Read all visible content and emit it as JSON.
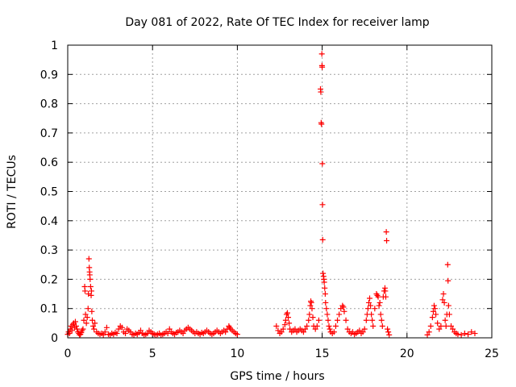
{
  "chart_data": {
    "type": "scatter",
    "title": "Day 081 of 2022, Rate Of TEC Index for receiver lamp",
    "xlabel": "GPS time / hours",
    "ylabel": "ROTI / TECUs",
    "xlim": [
      0,
      25
    ],
    "ylim": [
      0,
      1
    ],
    "grid": true,
    "x_ticks": [
      "0",
      "5",
      "10",
      "15",
      "20",
      "25"
    ],
    "y_ticks": [
      "0",
      "0.1",
      "0.2",
      "0.3",
      "0.4",
      "0.5",
      "0.6",
      "0.7",
      "0.8",
      "0.9",
      "1"
    ],
    "marker": "plus",
    "color": "#ff0000",
    "series": [
      {
        "points": [
          [
            0.0,
            0.012
          ],
          [
            0.05,
            0.02
          ],
          [
            0.1,
            0.015
          ],
          [
            0.15,
            0.03
          ],
          [
            0.2,
            0.04
          ],
          [
            0.25,
            0.025
          ],
          [
            0.3,
            0.045
          ],
          [
            0.35,
            0.05
          ],
          [
            0.4,
            0.035
          ],
          [
            0.45,
            0.055
          ],
          [
            0.5,
            0.04
          ],
          [
            0.55,
            0.03
          ],
          [
            0.6,
            0.02
          ],
          [
            0.65,
            0.015
          ],
          [
            0.7,
            0.01
          ],
          [
            0.75,
            0.012
          ],
          [
            0.8,
            0.018
          ],
          [
            0.85,
            0.025
          ],
          [
            0.9,
            0.03
          ],
          [
            0.95,
            0.06
          ],
          [
            1.0,
            0.175
          ],
          [
            1.02,
            0.16
          ],
          [
            1.05,
            0.08
          ],
          [
            1.1,
            0.05
          ],
          [
            1.15,
            0.07
          ],
          [
            1.2,
            0.1
          ],
          [
            1.22,
            0.15
          ],
          [
            1.25,
            0.27
          ],
          [
            1.27,
            0.24
          ],
          [
            1.29,
            0.225
          ],
          [
            1.3,
            0.215
          ],
          [
            1.32,
            0.2
          ],
          [
            1.35,
            0.175
          ],
          [
            1.38,
            0.145
          ],
          [
            1.4,
            0.16
          ],
          [
            1.42,
            0.09
          ],
          [
            1.45,
            0.06
          ],
          [
            1.5,
            0.04
          ],
          [
            1.55,
            0.03
          ],
          [
            1.6,
            0.05
          ],
          [
            1.7,
            0.02
          ],
          [
            1.8,
            0.015
          ],
          [
            1.9,
            0.012
          ],
          [
            2.0,
            0.015
          ],
          [
            2.1,
            0.01
          ],
          [
            2.2,
            0.02
          ],
          [
            2.3,
            0.035
          ],
          [
            2.4,
            0.012
          ],
          [
            2.5,
            0.01
          ],
          [
            2.6,
            0.015
          ],
          [
            2.7,
            0.012
          ],
          [
            2.8,
            0.018
          ],
          [
            2.9,
            0.015
          ],
          [
            3.0,
            0.03
          ],
          [
            3.1,
            0.04
          ],
          [
            3.2,
            0.035
          ],
          [
            3.3,
            0.02
          ],
          [
            3.4,
            0.015
          ],
          [
            3.5,
            0.03
          ],
          [
            3.6,
            0.025
          ],
          [
            3.7,
            0.02
          ],
          [
            3.8,
            0.012
          ],
          [
            3.9,
            0.01
          ],
          [
            4.0,
            0.015
          ],
          [
            4.1,
            0.012
          ],
          [
            4.2,
            0.018
          ],
          [
            4.3,
            0.025
          ],
          [
            4.4,
            0.015
          ],
          [
            4.5,
            0.01
          ],
          [
            4.6,
            0.012
          ],
          [
            4.7,
            0.015
          ],
          [
            4.8,
            0.025
          ],
          [
            4.9,
            0.02
          ],
          [
            5.0,
            0.015
          ],
          [
            5.1,
            0.012
          ],
          [
            5.2,
            0.01
          ],
          [
            5.3,
            0.012
          ],
          [
            5.4,
            0.015
          ],
          [
            5.5,
            0.01
          ],
          [
            5.6,
            0.012
          ],
          [
            5.7,
            0.015
          ],
          [
            5.8,
            0.02
          ],
          [
            5.9,
            0.015
          ],
          [
            6.0,
            0.03
          ],
          [
            6.1,
            0.02
          ],
          [
            6.2,
            0.015
          ],
          [
            6.3,
            0.012
          ],
          [
            6.4,
            0.018
          ],
          [
            6.5,
            0.02
          ],
          [
            6.6,
            0.025
          ],
          [
            6.7,
            0.02
          ],
          [
            6.8,
            0.015
          ],
          [
            6.9,
            0.025
          ],
          [
            7.0,
            0.03
          ],
          [
            7.1,
            0.035
          ],
          [
            7.2,
            0.03
          ],
          [
            7.3,
            0.025
          ],
          [
            7.4,
            0.02
          ],
          [
            7.5,
            0.015
          ],
          [
            7.6,
            0.02
          ],
          [
            7.7,
            0.015
          ],
          [
            7.8,
            0.012
          ],
          [
            7.9,
            0.018
          ],
          [
            8.0,
            0.015
          ],
          [
            8.1,
            0.02
          ],
          [
            8.2,
            0.025
          ],
          [
            8.3,
            0.02
          ],
          [
            8.4,
            0.015
          ],
          [
            8.5,
            0.012
          ],
          [
            8.6,
            0.015
          ],
          [
            8.7,
            0.02
          ],
          [
            8.8,
            0.025
          ],
          [
            8.9,
            0.02
          ],
          [
            9.0,
            0.015
          ],
          [
            9.1,
            0.02
          ],
          [
            9.2,
            0.025
          ],
          [
            9.3,
            0.02
          ],
          [
            9.4,
            0.03
          ],
          [
            9.5,
            0.04
          ],
          [
            9.55,
            0.035
          ],
          [
            9.6,
            0.03
          ],
          [
            9.7,
            0.025
          ],
          [
            9.8,
            0.02
          ],
          [
            9.9,
            0.015
          ],
          [
            10.0,
            0.012
          ],
          [
            12.3,
            0.04
          ],
          [
            12.4,
            0.025
          ],
          [
            12.5,
            0.015
          ],
          [
            12.6,
            0.02
          ],
          [
            12.7,
            0.03
          ],
          [
            12.8,
            0.045
          ],
          [
            12.85,
            0.06
          ],
          [
            12.9,
            0.08
          ],
          [
            12.95,
            0.085
          ],
          [
            13.0,
            0.07
          ],
          [
            13.05,
            0.05
          ],
          [
            13.1,
            0.03
          ],
          [
            13.2,
            0.02
          ],
          [
            13.3,
            0.025
          ],
          [
            13.4,
            0.03
          ],
          [
            13.5,
            0.02
          ],
          [
            13.6,
            0.025
          ],
          [
            13.7,
            0.03
          ],
          [
            13.8,
            0.025
          ],
          [
            13.9,
            0.02
          ],
          [
            14.0,
            0.03
          ],
          [
            14.1,
            0.04
          ],
          [
            14.2,
            0.06
          ],
          [
            14.25,
            0.08
          ],
          [
            14.3,
            0.11
          ],
          [
            14.33,
            0.125
          ],
          [
            14.36,
            0.12
          ],
          [
            14.4,
            0.1
          ],
          [
            14.45,
            0.07
          ],
          [
            14.5,
            0.04
          ],
          [
            14.6,
            0.03
          ],
          [
            14.7,
            0.04
          ],
          [
            14.8,
            0.06
          ],
          [
            14.9,
            0.85
          ],
          [
            14.92,
            0.84
          ],
          [
            14.94,
            0.735
          ],
          [
            14.96,
            0.73
          ],
          [
            14.98,
            0.97
          ],
          [
            14.99,
            0.93
          ],
          [
            15.0,
            0.925
          ],
          [
            15.01,
            0.595
          ],
          [
            15.02,
            0.455
          ],
          [
            15.03,
            0.335
          ],
          [
            15.05,
            0.22
          ],
          [
            15.08,
            0.21
          ],
          [
            15.1,
            0.2
          ],
          [
            15.12,
            0.19
          ],
          [
            15.15,
            0.17
          ],
          [
            15.18,
            0.15
          ],
          [
            15.2,
            0.12
          ],
          [
            15.25,
            0.1
          ],
          [
            15.3,
            0.08
          ],
          [
            15.35,
            0.06
          ],
          [
            15.4,
            0.04
          ],
          [
            15.45,
            0.03
          ],
          [
            15.5,
            0.02
          ],
          [
            15.6,
            0.015
          ],
          [
            15.7,
            0.02
          ],
          [
            15.8,
            0.04
          ],
          [
            15.9,
            0.06
          ],
          [
            16.0,
            0.08
          ],
          [
            16.1,
            0.1
          ],
          [
            16.2,
            0.11
          ],
          [
            16.25,
            0.105
          ],
          [
            16.3,
            0.09
          ],
          [
            16.4,
            0.06
          ],
          [
            16.5,
            0.03
          ],
          [
            16.6,
            0.02
          ],
          [
            16.7,
            0.015
          ],
          [
            16.8,
            0.02
          ],
          [
            16.9,
            0.012
          ],
          [
            17.0,
            0.015
          ],
          [
            17.1,
            0.02
          ],
          [
            17.2,
            0.025
          ],
          [
            17.3,
            0.015
          ],
          [
            17.4,
            0.02
          ],
          [
            17.5,
            0.03
          ],
          [
            17.6,
            0.06
          ],
          [
            17.65,
            0.08
          ],
          [
            17.7,
            0.1
          ],
          [
            17.75,
            0.12
          ],
          [
            17.8,
            0.135
          ],
          [
            17.85,
            0.11
          ],
          [
            17.9,
            0.08
          ],
          [
            17.95,
            0.06
          ],
          [
            18.0,
            0.04
          ],
          [
            18.1,
            0.1
          ],
          [
            18.2,
            0.15
          ],
          [
            18.25,
            0.145
          ],
          [
            18.3,
            0.14
          ],
          [
            18.35,
            0.11
          ],
          [
            18.4,
            0.12
          ],
          [
            18.45,
            0.08
          ],
          [
            18.5,
            0.06
          ],
          [
            18.55,
            0.04
          ],
          [
            18.6,
            0.14
          ],
          [
            18.65,
            0.16
          ],
          [
            18.7,
            0.17
          ],
          [
            18.72,
            0.16
          ],
          [
            18.75,
            0.14
          ],
          [
            18.78,
            0.362
          ],
          [
            18.8,
            0.332
          ],
          [
            18.85,
            0.03
          ],
          [
            18.9,
            0.02
          ],
          [
            18.95,
            0.01
          ],
          [
            21.2,
            0.01
          ],
          [
            21.3,
            0.02
          ],
          [
            21.4,
            0.04
          ],
          [
            21.5,
            0.07
          ],
          [
            21.55,
            0.09
          ],
          [
            21.6,
            0.11
          ],
          [
            21.65,
            0.1
          ],
          [
            21.7,
            0.08
          ],
          [
            21.8,
            0.05
          ],
          [
            21.9,
            0.03
          ],
          [
            22.0,
            0.04
          ],
          [
            22.1,
            0.13
          ],
          [
            22.15,
            0.15
          ],
          [
            22.2,
            0.12
          ],
          [
            22.25,
            0.06
          ],
          [
            22.3,
            0.04
          ],
          [
            22.35,
            0.08
          ],
          [
            22.4,
            0.25
          ],
          [
            22.42,
            0.195
          ],
          [
            22.45,
            0.11
          ],
          [
            22.5,
            0.08
          ],
          [
            22.6,
            0.04
          ],
          [
            22.7,
            0.03
          ],
          [
            22.8,
            0.02
          ],
          [
            22.9,
            0.015
          ],
          [
            23.0,
            0.012
          ],
          [
            23.2,
            0.01
          ],
          [
            23.4,
            0.015
          ],
          [
            23.6,
            0.012
          ],
          [
            23.8,
            0.02
          ],
          [
            24.0,
            0.015
          ]
        ]
      }
    ]
  }
}
